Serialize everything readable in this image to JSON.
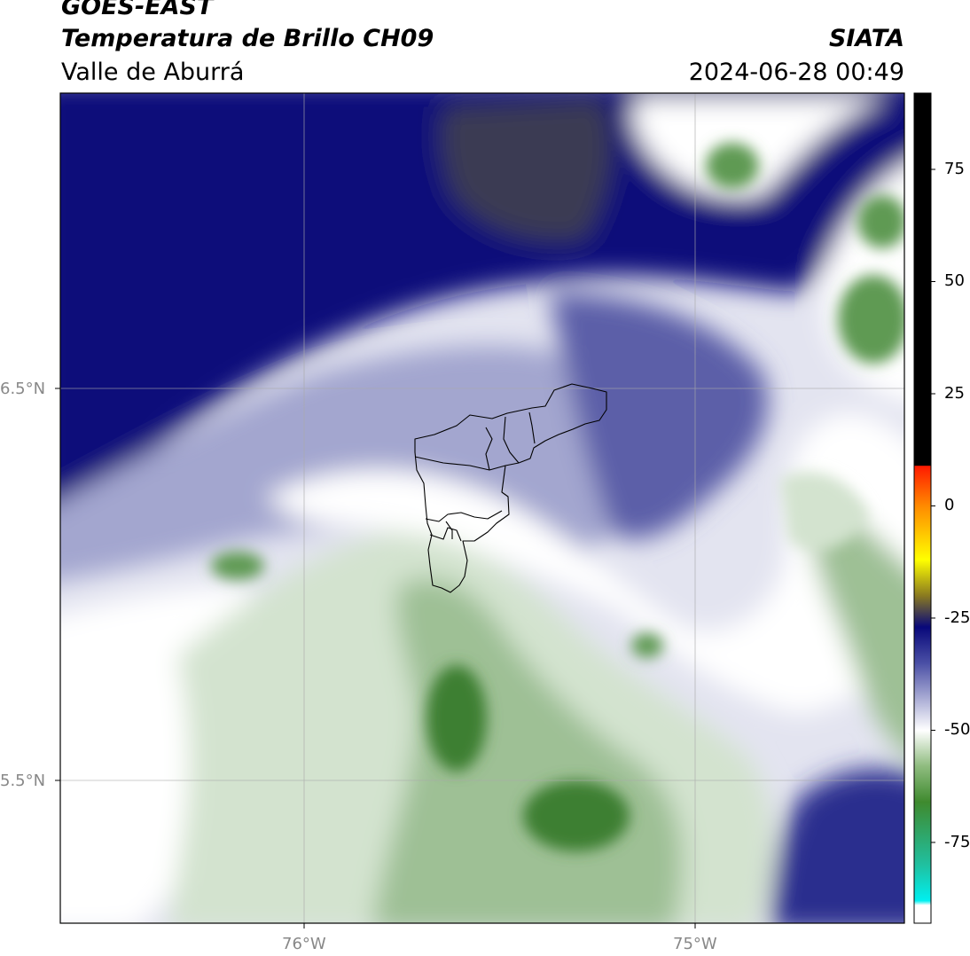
{
  "header": {
    "line1": "GOES-EAST",
    "line2": "Temperatura de Brillo CH09",
    "line3": "Valle de Aburrá",
    "brand": "SIATA",
    "datetime": "2024-06-28 00:49"
  },
  "map": {
    "lat_labels": [
      "6.5°N",
      "5.5°N"
    ],
    "lon_labels": [
      "76°W",
      "75°W"
    ],
    "field_colors": {
      "dark_navy": "#08087a",
      "navy": "#2a2d8e",
      "mid_blue": "#5b5fa8",
      "light_blue": "#a3a6cf",
      "pale": "#e3e4f0",
      "white": "#ffffff",
      "pale_green": "#d3e3cf",
      "light_green": "#9ec095",
      "green": "#5f9a52",
      "dark_green": "#3e7f32",
      "brownish": "#3a3a52"
    }
  },
  "colorbar": {
    "ticks": [
      "75",
      "50",
      "25",
      "0",
      "-25",
      "-50",
      "-75"
    ],
    "tick_values": [
      75,
      50,
      25,
      0,
      -25,
      -50,
      -75
    ],
    "range": [
      -93,
      92
    ],
    "stops": [
      {
        "v": 92,
        "c": "#000000"
      },
      {
        "v": 9,
        "c": "#000000"
      },
      {
        "v": 8.9,
        "c": "#ff1a00"
      },
      {
        "v": 0,
        "c": "#ff8a00"
      },
      {
        "v": -12,
        "c": "#ffff00"
      },
      {
        "v": -20,
        "c": "#8a7a20"
      },
      {
        "v": -27,
        "c": "#08087a"
      },
      {
        "v": -35,
        "c": "#4a4fa5"
      },
      {
        "v": -50,
        "c": "#ffffff"
      },
      {
        "v": -58,
        "c": "#8fbc7f"
      },
      {
        "v": -66,
        "c": "#3f8a2e"
      },
      {
        "v": -80,
        "c": "#20c0a0"
      },
      {
        "v": -88,
        "c": "#00f0f0"
      },
      {
        "v": -89,
        "c": "#ffffff"
      },
      {
        "v": -93,
        "c": "#ffffff"
      }
    ]
  }
}
